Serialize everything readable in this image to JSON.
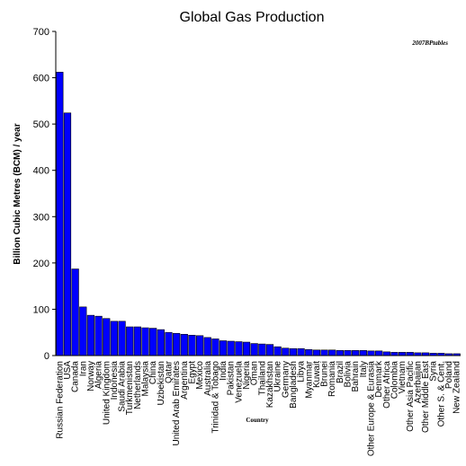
{
  "chart_data": {
    "type": "bar",
    "title": "Global Gas Production",
    "annotation": "2007BPtables",
    "xlabel": "Country",
    "ylabel": "Billion Cubic Metres (BCM) / year",
    "ylim": [
      0,
      700
    ],
    "yticks": [
      0,
      100,
      200,
      300,
      400,
      500,
      600,
      700
    ],
    "grid": false,
    "legend": "none",
    "bar_color": "#0000ff",
    "categories": [
      "Russian Federation",
      "USA",
      "Canada",
      "Iran",
      "Norway",
      "Algeria",
      "United Kingdom",
      "Indonesia",
      "Saudi Arabia",
      "Turkmenistan",
      "Netherlands",
      "Malaysia",
      "China",
      "Uzbekistan",
      "Qatar",
      "United Arab Emirates",
      "Argentina",
      "Egypt",
      "Mexico",
      "Australia",
      "Trinidad & Tobago",
      "India",
      "Pakistan",
      "Venezuela",
      "Nigeria",
      "Oman",
      "Thailand",
      "Kazakhstan",
      "Ukraine",
      "Germany",
      "Bangladesh",
      "Libya",
      "Myanmar",
      "Kuwait",
      "Brunei",
      "Romania",
      "Brazil",
      "Bolivia",
      "Bahrain",
      "Italy",
      "Other Europe & Eurasia",
      "Denmark",
      "Other Africa",
      "Colombia",
      "Vietnam",
      "Other Asia Pacific",
      "Azerbaijan",
      "Other Middle East",
      "Syria",
      "Other S. & Cent.",
      "Poland",
      "New Zealand"
    ],
    "values": [
      612,
      524,
      187,
      105,
      87,
      85,
      80,
      74,
      74,
      62,
      62,
      60,
      59,
      56,
      50,
      48,
      46,
      44,
      43,
      39,
      36,
      32,
      31,
      30,
      29,
      26,
      25,
      24,
      19,
      16,
      15,
      15,
      13,
      12,
      12,
      12,
      11,
      11,
      11,
      11,
      10,
      10,
      8,
      7,
      7,
      7,
      6,
      6,
      5,
      5,
      4,
      4
    ]
  }
}
